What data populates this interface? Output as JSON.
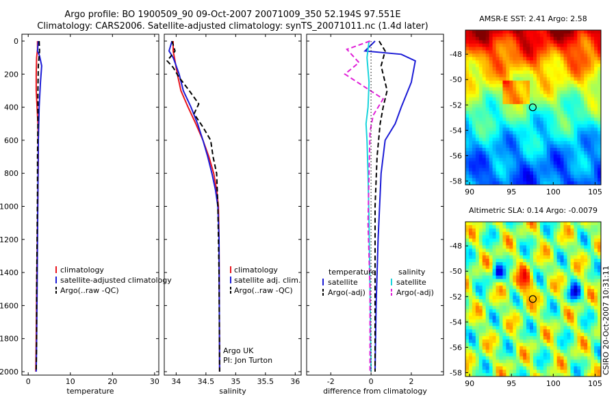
{
  "figure": {
    "title_line1": "Argo profile: BO 1900509_90 09-Oct-2007 20071009_350 52.194S 97.551E",
    "title_line2": "Climatology: CARS2006. Satellite-adjusted climatology: synTS_20071011.nc (1.4d later)",
    "stamp": "CSIRO 20-Oct-2007 10:31:11"
  },
  "colors": {
    "climatology": "#e8141c",
    "satellite": "#1a1ad6",
    "argo": "#000000",
    "salinity_satellite": "#19d4dc",
    "salinity_argo": "#e020d8"
  },
  "chart_data": [
    {
      "type": "line",
      "xlabel": "temperature",
      "xlim": [
        -1.5,
        31
      ],
      "xticks": [
        0,
        10,
        20,
        30
      ],
      "ylim": [
        2050,
        0
      ],
      "yticks": [
        0,
        200,
        400,
        600,
        800,
        1000,
        1200,
        1400,
        1600,
        1800,
        2000
      ],
      "legend": {
        "position": "right-middle",
        "entries": [
          "climatology",
          "satellite-adjusted climatology",
          "Argo(..raw -QC)"
        ]
      },
      "series": [
        {
          "name": "climatology",
          "color": "#e8141c",
          "dash": "solid",
          "x": [
            2.2,
            2.2,
            2.0,
            1.9,
            1.9,
            2.1,
            2.3,
            2.4,
            2.3,
            2.2,
            2.1,
            2.0,
            1.9,
            1.8
          ],
          "y": [
            0,
            50,
            100,
            200,
            300,
            400,
            500,
            700,
            900,
            1100,
            1300,
            1500,
            1800,
            2000
          ]
        },
        {
          "name": "satellite-adjusted climatology",
          "color": "#1a1ad6",
          "dash": "solid",
          "x": [
            2.4,
            2.2,
            2.7,
            3.2,
            2.9,
            2.6,
            2.4,
            2.3,
            2.2,
            2.1,
            2.0,
            1.9
          ],
          "y": [
            0,
            60,
            90,
            150,
            250,
            400,
            600,
            900,
            1200,
            1500,
            1800,
            2000
          ]
        },
        {
          "name": "Argo(..raw -QC)",
          "color": "#000000",
          "dash": "dashed",
          "x": [
            2.6,
            2.7,
            2.4,
            2.3,
            2.3,
            2.2,
            2.2,
            2.1,
            2.0,
            2.0,
            1.9
          ],
          "y": [
            0,
            60,
            150,
            300,
            500,
            700,
            900,
            1200,
            1500,
            1800,
            2000
          ]
        }
      ]
    },
    {
      "type": "line",
      "xlabel": "salinity",
      "xlim": [
        33.8,
        36.1
      ],
      "xticks": [
        34,
        34.5,
        35,
        35.5,
        36
      ],
      "ylim": [
        2050,
        0
      ],
      "legend": {
        "position": "right-middle",
        "entries": [
          "climatology",
          "satellite adj. clim.",
          "Argo(..raw -QC)"
        ]
      },
      "annotation": [
        "Argo UK",
        "PI: Jon Turton"
      ],
      "series": [
        {
          "name": "climatology",
          "color": "#e8141c",
          "dash": "solid",
          "x": [
            33.95,
            33.95,
            33.98,
            34.02,
            34.08,
            34.2,
            34.33,
            34.45,
            34.55,
            34.63,
            34.68,
            34.71,
            34.72,
            34.73
          ],
          "y": [
            0,
            60,
            120,
            200,
            300,
            400,
            500,
            600,
            700,
            800,
            900,
            1000,
            1200,
            2000
          ]
        },
        {
          "name": "satellite adj. clim.",
          "color": "#1a1ad6",
          "dash": "solid",
          "x": [
            33.93,
            33.88,
            33.95,
            34.0,
            34.05,
            34.12,
            34.25,
            34.36,
            34.45,
            34.53,
            34.6,
            34.66,
            34.7,
            34.72,
            34.73
          ],
          "y": [
            0,
            60,
            100,
            150,
            200,
            300,
            400,
            500,
            600,
            700,
            800,
            900,
            1000,
            1200,
            2000
          ]
        },
        {
          "name": "Argo(..raw -QC)",
          "color": "#000000",
          "dash": "dashed",
          "x": [
            33.93,
            33.98,
            33.85,
            33.95,
            34.05,
            34.22,
            34.38,
            34.3,
            34.45,
            34.58,
            34.62,
            34.68,
            34.7,
            34.72,
            34.73
          ],
          "y": [
            0,
            60,
            120,
            160,
            220,
            300,
            380,
            440,
            520,
            600,
            700,
            800,
            1000,
            1400,
            2000
          ]
        }
      ]
    },
    {
      "type": "line",
      "xlabel": "difference from climatology",
      "xlim": [
        -3.2,
        3.6
      ],
      "xticks": [
        -2,
        0,
        2
      ],
      "ylim": [
        2050,
        0
      ],
      "legend": {
        "position": "right-middle",
        "groups": [
          {
            "heading": "temperature",
            "entries": [
              "satellite",
              "Argo(-adj)"
            ]
          },
          {
            "heading": "salinity",
            "entries": [
              "satellite",
              "Argo(-adj)"
            ]
          }
        ]
      },
      "series": [
        {
          "name": "temperature satellite",
          "color": "#1a1ad6",
          "dash": "solid",
          "x": [
            0.2,
            -0.3,
            1.5,
            2.2,
            2.0,
            1.5,
            1.2,
            0.7,
            0.5,
            0.35,
            0.25,
            0.2
          ],
          "y": [
            0,
            60,
            80,
            120,
            250,
            400,
            500,
            600,
            800,
            1200,
            1600,
            2000
          ]
        },
        {
          "name": "temperature Argo(-adj)",
          "color": "#000000",
          "dash": "dashed",
          "x": [
            0.4,
            0.7,
            0.5,
            0.8,
            0.6,
            0.45,
            0.3,
            0.2,
            0.2,
            0.2
          ],
          "y": [
            0,
            60,
            150,
            300,
            400,
            500,
            700,
            1000,
            1500,
            2000
          ]
        },
        {
          "name": "salinity satellite",
          "color": "#19d4dc",
          "dash": "solid",
          "x": [
            -0.1,
            -0.2,
            -0.1,
            -0.15,
            -0.25,
            -0.2,
            -0.15,
            -0.1,
            -0.05,
            0.0
          ],
          "y": [
            0,
            100,
            250,
            400,
            500,
            600,
            800,
            1100,
            1500,
            2000
          ]
        },
        {
          "name": "salinity Argo(-adj)",
          "color": "#e020d8",
          "dash": "dashed",
          "x": [
            -0.05,
            -1.2,
            -0.6,
            -1.3,
            0.6,
            0.1,
            -0.05,
            -0.1,
            -0.15,
            -0.05,
            -0.05
          ],
          "y": [
            0,
            50,
            130,
            200,
            350,
            450,
            550,
            800,
            1100,
            1500,
            2000
          ]
        },
        {
          "name": "zero line",
          "color": "#000000",
          "dash": "dotted",
          "x": [
            0,
            0
          ],
          "y": [
            0,
            2000
          ]
        }
      ]
    },
    {
      "type": "heatmap",
      "title": "AMSR-E SST: 2.41 Argo: 2.58",
      "xlim": [
        89.5,
        105.7
      ],
      "ylim": [
        -58.3,
        -46.1
      ],
      "xticks": [
        90,
        95,
        100,
        105
      ],
      "yticks": [
        -48,
        -50,
        -52,
        -54,
        -56,
        -58
      ],
      "colormap": "jet",
      "marker": {
        "lon": 97.55,
        "lat": -52.19
      }
    },
    {
      "type": "heatmap",
      "title": "Altimetric SLA: 0.14 Argo: -0.0079",
      "xlim": [
        89.5,
        105.7
      ],
      "ylim": [
        -58.3,
        -46.1
      ],
      "xticks": [
        90,
        95,
        100,
        105
      ],
      "yticks": [
        -48,
        -50,
        -52,
        -54,
        -56,
        -58
      ],
      "colormap": "jet",
      "marker": {
        "lon": 97.55,
        "lat": -52.19
      }
    }
  ]
}
